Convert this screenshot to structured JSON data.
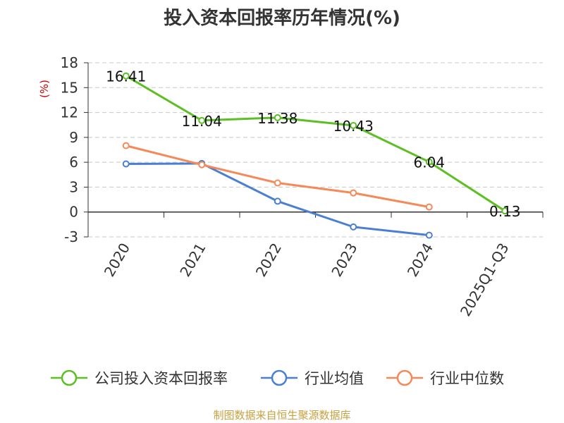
{
  "chart_data": {
    "type": "line",
    "title": "投入资本回报率历年情况(%)",
    "ylabel": "(%)",
    "xlabel": "",
    "categories": [
      "2020",
      "2021",
      "2022",
      "2023",
      "2024",
      "2025Q1-Q3"
    ],
    "ylim": [
      -3,
      18
    ],
    "yticks": [
      18,
      15,
      12,
      9,
      6,
      3,
      0,
      -3
    ],
    "grid": true,
    "legend_position": "bottom",
    "series": [
      {
        "name": "公司投入资本回报率",
        "color": "#5cbf24",
        "values": [
          16.41,
          11.04,
          11.38,
          10.43,
          6.04,
          0.13
        ],
        "labels": [
          "16.41",
          "11.04",
          "11.38",
          "10.43",
          "6.04",
          "0.13"
        ]
      },
      {
        "name": "行业均值",
        "color": "#4a7fd4",
        "values": [
          5.8,
          5.85,
          1.3,
          -1.8,
          -2.8,
          null
        ]
      },
      {
        "name": "行业中位数",
        "color": "#f5895a",
        "values": [
          8.0,
          5.7,
          3.5,
          2.3,
          0.6,
          null
        ]
      }
    ]
  },
  "source": "制图数据来自恒生聚源数据库"
}
